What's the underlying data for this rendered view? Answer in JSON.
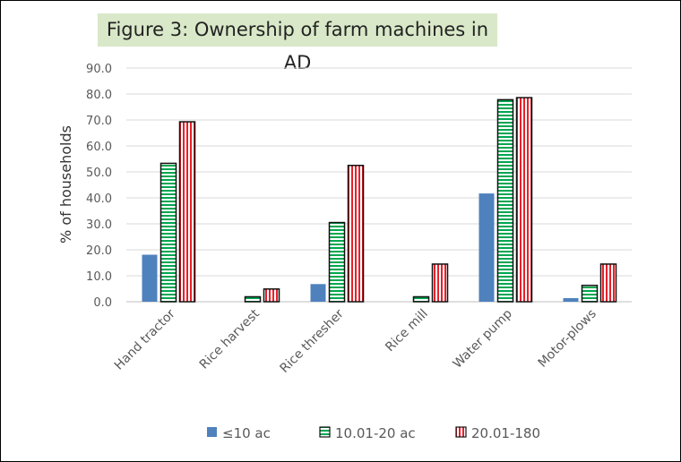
{
  "chart_data": {
    "type": "bar",
    "title": "Figure 3: Ownership of farm machines in AD",
    "ylabel": "% of households",
    "xlabel": "",
    "ylim": [
      0,
      90
    ],
    "yticks": [
      "0.0",
      "10.0",
      "20.0",
      "30.0",
      "40.0",
      "50.0",
      "60.0",
      "70.0",
      "80.0",
      "90.0"
    ],
    "grid": true,
    "legend_position": "bottom",
    "categories": [
      "Hand tractor",
      "Rice harvest",
      "Rice thresher",
      "Rice mill",
      "Water pump",
      "Motor-plows"
    ],
    "series": [
      {
        "name": "≤10 ac",
        "values": [
          18.1,
          0,
          6.8,
          0,
          41.7,
          1.4
        ],
        "color": "#4f81bd",
        "pattern": "solid"
      },
      {
        "name": "10.01-20 ac",
        "values": [
          53.3,
          1.9,
          30.5,
          1.9,
          77.8,
          6.3
        ],
        "color": "#00a650",
        "pattern": "horizontal-stripes"
      },
      {
        "name": "20.01-180",
        "values": [
          69.3,
          4.9,
          52.5,
          14.5,
          78.6,
          14.5
        ],
        "color": "#e8202a",
        "pattern": "vertical-stripes"
      }
    ]
  }
}
